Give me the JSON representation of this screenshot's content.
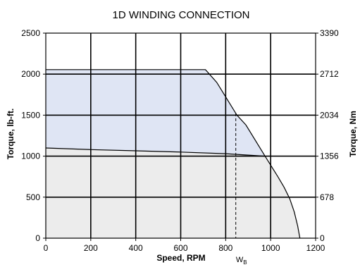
{
  "chart_data": {
    "type": "area",
    "title": "1D WINDING CONNECTION",
    "xlabel": "Speed, RPM",
    "ylabel": "Torque, lb-ft.",
    "y2label": "Torque, Nm",
    "xlim": [
      0,
      1200
    ],
    "ylim": [
      0,
      2500
    ],
    "y2lim": [
      0,
      3390
    ],
    "x_ticks": [
      "0",
      "200",
      "400",
      "600",
      "800",
      "1000",
      "1200"
    ],
    "y_ticks": [
      "0",
      "500",
      "1000",
      "1500",
      "2000",
      "2500"
    ],
    "y2_ticks": [
      "0",
      "678",
      "1356",
      "2034",
      "2712",
      "3390"
    ],
    "grid": true,
    "colors": {
      "peak_fill": "#dfe5f4",
      "continuous_fill": "#ececec",
      "line": "#000000",
      "grid": "#000000"
    },
    "series": [
      {
        "values": [
          [
            0,
            2055
          ],
          [
            710,
            2055
          ],
          [
            760,
            1900
          ],
          [
            850,
            1500
          ],
          [
            890,
            1380
          ],
          [
            975,
            1000
          ],
          [
            1030,
            760
          ],
          [
            1060,
            620
          ],
          [
            1085,
            480
          ],
          [
            1105,
            320
          ],
          [
            1120,
            150
          ],
          [
            1130,
            0
          ]
        ]
      },
      {
        "values": [
          [
            0,
            1100
          ],
          [
            200,
            1080
          ],
          [
            400,
            1065
          ],
          [
            600,
            1050
          ],
          [
            800,
            1030
          ],
          [
            975,
            1000
          ]
        ]
      }
    ],
    "annotation": {
      "label_main": "W",
      "label_sub": "B",
      "x": 845
    }
  }
}
